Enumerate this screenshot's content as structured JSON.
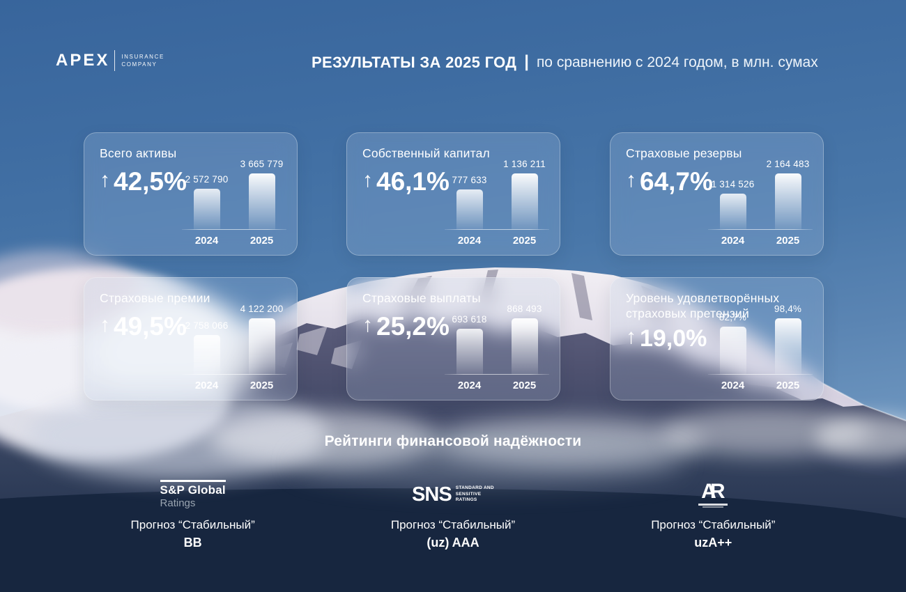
{
  "header": {
    "logo": {
      "brand": "APEX",
      "sub_line1": "INSURANCE",
      "sub_line2": "COMPANY"
    },
    "title_bold": "РЕЗУЛЬТАТЫ ЗА 2025 ГОД",
    "title_separator": "|",
    "title_rest": "по сравнению с 2024 годом, в млн. сумах"
  },
  "icons": {
    "up_arrow": "↑"
  },
  "cards": [
    {
      "title": "Всего активы",
      "delta": "42,5%"
    },
    {
      "title": "Собственный капитал",
      "delta": "46,1%"
    },
    {
      "title": "Страховые резервы",
      "delta": "64,7%"
    },
    {
      "title": "Страховые премии",
      "delta": "49,5%"
    },
    {
      "title": "Страховые выплаты",
      "delta": "25,2%"
    },
    {
      "title": "Уровень удовлетворённых страховых претензий",
      "delta": "19,0%"
    }
  ],
  "chart_data": [
    {
      "type": "bar",
      "title": "Всего активы",
      "categories": [
        "2024",
        "2025"
      ],
      "values": [
        2572790,
        3665779
      ],
      "value_labels": [
        "2 572 790",
        "3 665 779"
      ],
      "delta_percent": "+42,5%",
      "unit": "млн. сум"
    },
    {
      "type": "bar",
      "title": "Собственный капитал",
      "categories": [
        "2024",
        "2025"
      ],
      "values": [
        777633,
        1136211
      ],
      "value_labels": [
        "777 633",
        "1 136 211"
      ],
      "delta_percent": "+46,1%",
      "unit": "млн. сум"
    },
    {
      "type": "bar",
      "title": "Страховые резервы",
      "categories": [
        "2024",
        "2025"
      ],
      "values": [
        1314526,
        2164483
      ],
      "value_labels": [
        "1 314 526",
        "2 164 483"
      ],
      "delta_percent": "+64,7%",
      "unit": "млн. сум"
    },
    {
      "type": "bar",
      "title": "Страховые премии",
      "categories": [
        "2024",
        "2025"
      ],
      "values": [
        2758066,
        4122200
      ],
      "value_labels": [
        "2 758 066",
        "4 122 200"
      ],
      "delta_percent": "+49,5%",
      "unit": "млн. сум"
    },
    {
      "type": "bar",
      "title": "Страховые выплаты",
      "categories": [
        "2024",
        "2025"
      ],
      "values": [
        693618,
        868493
      ],
      "value_labels": [
        "693 618",
        "868 493"
      ],
      "delta_percent": "+25,2%",
      "unit": "млн. сум"
    },
    {
      "type": "bar",
      "title": "Уровень удовлетворённых страховых претензий",
      "categories": [
        "2024",
        "2025"
      ],
      "values": [
        82.7,
        98.4
      ],
      "value_labels": [
        "82,7%",
        "98,4%"
      ],
      "delta_percent": "+19,0%",
      "unit": "%"
    }
  ],
  "ratings": {
    "heading": "Рейтинги финансовой надёжности",
    "items": [
      {
        "logo_top": "S&P Global",
        "logo_bottom": "Ratings",
        "outlook": "Прогноз “Стабильный”",
        "grade": "BB"
      },
      {
        "logo_main": "SNS",
        "logo_side_line1": "STANDARD AND",
        "logo_side_line2": "SENSITIVE",
        "logo_side_line3": "RATINGS",
        "outlook": "Прогноз “Стабильный”",
        "grade": "(uz) AAA"
      },
      {
        "logo_main_a": "A",
        "logo_main_r": "R",
        "outlook": "Прогноз “Стабильный”",
        "grade": "uzA++"
      }
    ]
  },
  "colors": {
    "sky_top": "#38659c",
    "sky_light": "#6f97c0",
    "footer_navy": "#17263f",
    "snow": "#f2eef4",
    "card_glass": "rgba(186,206,228,0.22)",
    "text": "#ffffff",
    "sp_ratings_gray": "#9aa5b1"
  }
}
